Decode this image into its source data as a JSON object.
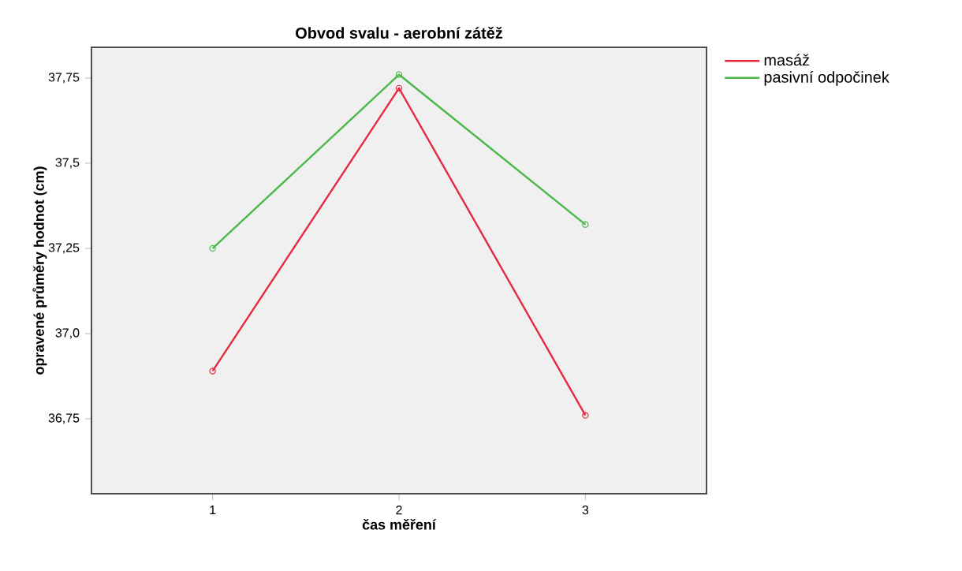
{
  "chart_data": {
    "type": "line",
    "title": "Obvod svalu - aerobní zátěž",
    "xlabel": "čas měření",
    "ylabel": "opravené průměry hodnot (cm)",
    "x": [
      1,
      2,
      3
    ],
    "series": [
      {
        "name": "masáž",
        "color": "#e8283c",
        "values": [
          36.89,
          37.72,
          36.76
        ]
      },
      {
        "name": "pasivní odpočinek",
        "color": "#4cb848",
        "values": [
          37.25,
          37.76,
          37.32
        ]
      }
    ],
    "xlim": [
      0.35,
      3.65
    ],
    "xticks": [
      1,
      2,
      3
    ],
    "ylim": [
      36.53,
      37.84
    ],
    "yticks": [
      {
        "value": 36.75,
        "label": "36,75"
      },
      {
        "value": 37.0,
        "label": "37,0"
      },
      {
        "value": 37.25,
        "label": "37,25"
      },
      {
        "value": 37.5,
        "label": "37,5"
      },
      {
        "value": 37.75,
        "label": "37,75"
      }
    ],
    "grid": false,
    "legend": "top right",
    "marker": "circle",
    "line_style": "solid"
  }
}
